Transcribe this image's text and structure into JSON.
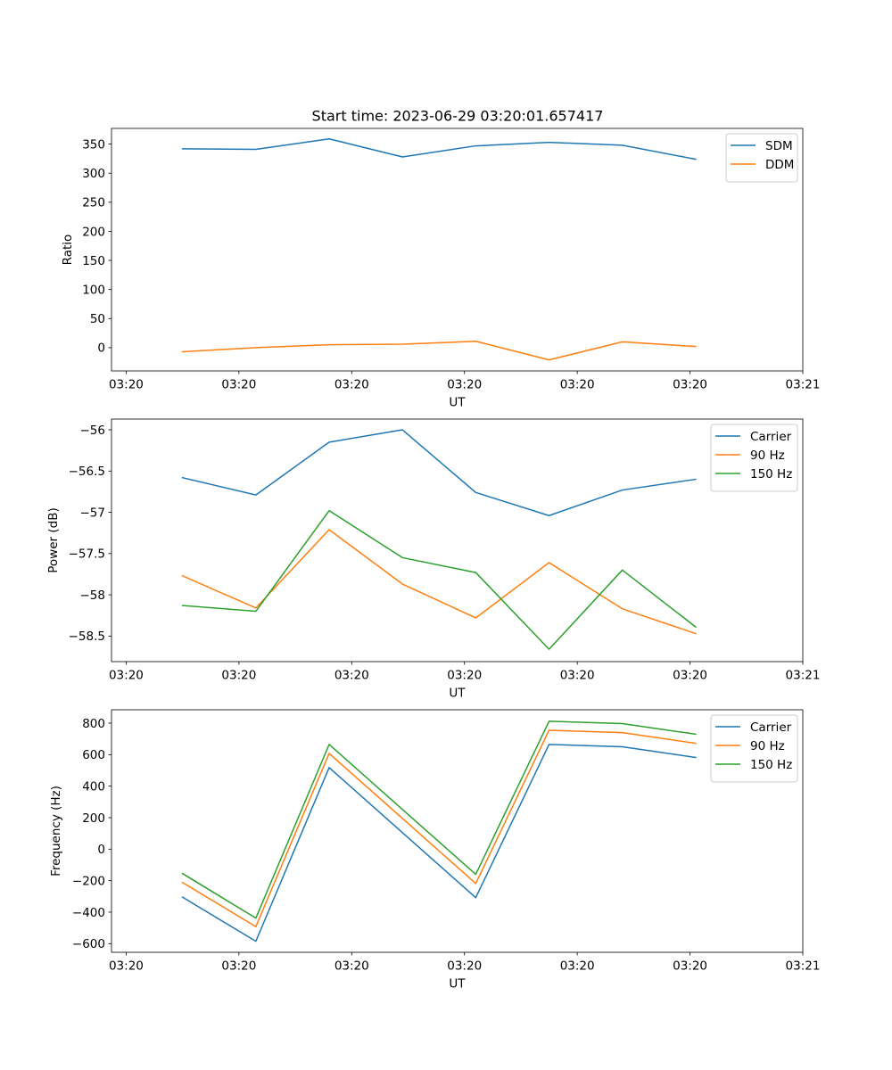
{
  "figure_title": "Start time: 2023-06-29 03:20:01.657417",
  "colors": {
    "blue": "#1f77b4",
    "orange": "#ff7f0e",
    "green": "#2ca02c"
  },
  "chart_data": [
    {
      "type": "line",
      "title": "Start time: 2023-06-29 03:20:01.657417",
      "xlabel": "UT",
      "ylabel": "Ratio",
      "x_tick_labels": [
        "03:20",
        "03:20",
        "03:20",
        "03:20",
        "03:20",
        "03:20",
        "03:21"
      ],
      "x_tick_positions": [
        0,
        1,
        2,
        3,
        4,
        5,
        6
      ],
      "xlim": [
        -0.13,
        6.0
      ],
      "ylim": [
        -40,
        377
      ],
      "y_ticks": [
        0,
        50,
        100,
        150,
        200,
        250,
        300,
        350
      ],
      "x": [
        0.5,
        1.15,
        1.8,
        2.45,
        3.1,
        3.75,
        4.4,
        5.05
      ],
      "legend_position": "top-right",
      "series": [
        {
          "name": "SDM",
          "color": "#1f77b4",
          "values": [
            342,
            341,
            359,
            328,
            347,
            353,
            348,
            324
          ]
        },
        {
          "name": "DDM",
          "color": "#ff7f0e",
          "values": [
            -7,
            0,
            5,
            6,
            11,
            -21,
            10,
            2
          ]
        }
      ]
    },
    {
      "type": "line",
      "xlabel": "UT",
      "ylabel": "Power (dB)",
      "x_tick_labels": [
        "03:20",
        "03:20",
        "03:20",
        "03:20",
        "03:20",
        "03:20",
        "03:21"
      ],
      "x_tick_positions": [
        0,
        1,
        2,
        3,
        4,
        5,
        6
      ],
      "xlim": [
        -0.13,
        6.0
      ],
      "ylim": [
        -58.81,
        -55.87
      ],
      "y_ticks": [
        -58.5,
        -58.0,
        -57.5,
        -57.0,
        -56.5,
        -56.0
      ],
      "x": [
        0.5,
        1.15,
        1.8,
        2.45,
        3.1,
        3.75,
        4.4,
        5.05
      ],
      "legend_position": "top-right",
      "series": [
        {
          "name": "Carrier",
          "color": "#1f77b4",
          "values": [
            -56.58,
            -56.79,
            -56.15,
            -56.0,
            -56.76,
            -57.04,
            -56.73,
            -56.6
          ]
        },
        {
          "name": "90 Hz",
          "color": "#ff7f0e",
          "values": [
            -57.77,
            -58.16,
            -57.21,
            -57.87,
            -58.28,
            -57.61,
            -58.17,
            -58.47
          ]
        },
        {
          "name": "150 Hz",
          "color": "#2ca02c",
          "values": [
            -58.13,
            -58.2,
            -56.98,
            -57.55,
            -57.73,
            -58.66,
            -57.7,
            -58.39
          ]
        }
      ]
    },
    {
      "type": "line",
      "xlabel": "UT",
      "ylabel": "Frequency (Hz)",
      "x_tick_labels": [
        "03:20",
        "03:20",
        "03:20",
        "03:20",
        "03:20",
        "03:20",
        "03:21"
      ],
      "x_tick_positions": [
        0,
        1,
        2,
        3,
        4,
        5,
        6
      ],
      "xlim": [
        -0.13,
        6.0
      ],
      "ylim": [
        -655,
        885
      ],
      "y_ticks": [
        -600,
        -400,
        -200,
        0,
        200,
        400,
        600,
        800
      ],
      "x": [
        0.5,
        1.15,
        1.8,
        2.45,
        3.1,
        3.75,
        4.4,
        5.05
      ],
      "legend_position": "top-right",
      "series": [
        {
          "name": "Carrier",
          "color": "#1f77b4",
          "values": [
            -305,
            -585,
            518,
            105,
            -308,
            665,
            650,
            582
          ]
        },
        {
          "name": "90 Hz",
          "color": "#ff7f0e",
          "values": [
            -212,
            -492,
            608,
            195,
            -218,
            755,
            740,
            672
          ]
        },
        {
          "name": "150 Hz",
          "color": "#2ca02c",
          "values": [
            -155,
            -438,
            665,
            252,
            -160,
            812,
            797,
            730
          ]
        }
      ]
    }
  ]
}
